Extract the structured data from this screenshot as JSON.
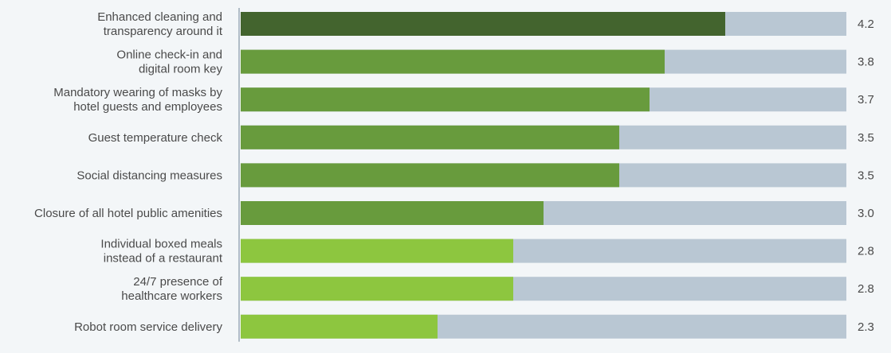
{
  "chart_data": {
    "type": "bar",
    "orientation": "horizontal",
    "title": "",
    "xlabel": "",
    "ylabel": "",
    "xlim": [
      1,
      5
    ],
    "grid": false,
    "legend": "none",
    "colors": {
      "background": "#f3f6f8",
      "track": "#b9c7d3",
      "axis": "#9aa9b6",
      "tier_high": "#43642e",
      "tier_mid": "#689b3d",
      "tier_low": "#8dc63f",
      "text": "#4a4a4a"
    },
    "categories": [
      [
        "Enhanced cleaning and",
        "transparency around it"
      ],
      [
        "Online check-in and",
        "digital room key"
      ],
      [
        "Mandatory wearing of masks by",
        "hotel guests and employees"
      ],
      [
        "Guest temperature check"
      ],
      [
        "Social distancing measures"
      ],
      [
        "Closure of all hotel public amenities"
      ],
      [
        "Individual boxed meals",
        "instead of a restaurant"
      ],
      [
        "24/7 presence of",
        "healthcare workers"
      ],
      [
        "Robot room service delivery"
      ]
    ],
    "values": [
      4.2,
      3.8,
      3.7,
      3.5,
      3.5,
      3.0,
      2.8,
      2.8,
      2.3
    ],
    "value_labels": [
      "4.2",
      "3.8",
      "3.7",
      "3.5",
      "3.5",
      "3.0",
      "2.8",
      "2.8",
      "2.3"
    ],
    "bar_tiers": [
      "tier_high",
      "tier_mid",
      "tier_mid",
      "tier_mid",
      "tier_mid",
      "tier_mid",
      "tier_low",
      "tier_low",
      "tier_low"
    ]
  }
}
